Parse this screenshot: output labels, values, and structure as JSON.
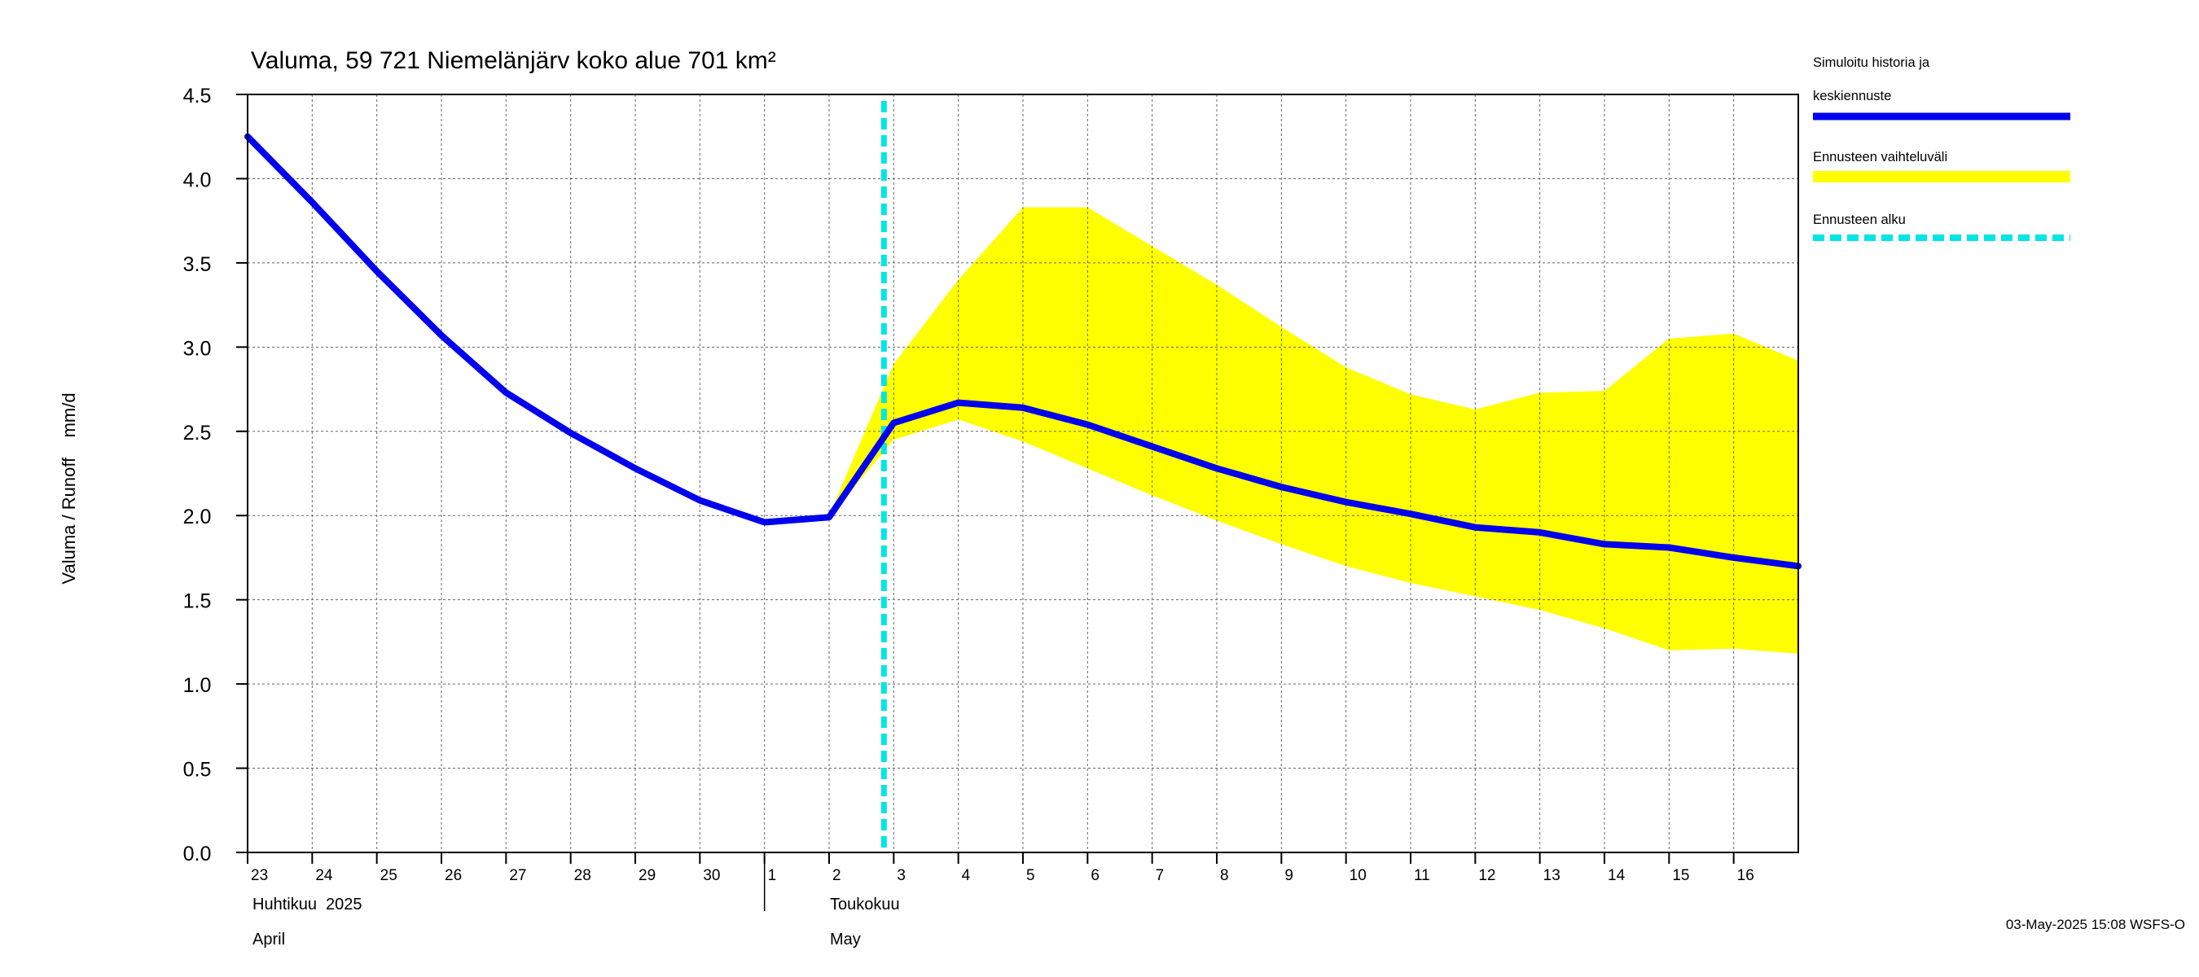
{
  "chart_data": {
    "type": "line",
    "title": "Valuma, 59 721 Niemelänjärv koko alue 701 km²",
    "ylabel": "Valuma / Runoff    mm/d",
    "ylim": [
      0,
      4.5
    ],
    "yticks": [
      "0.0",
      "0.5",
      "1.0",
      "1.5",
      "2.0",
      "2.5",
      "3.0",
      "3.5",
      "4.0",
      "4.5"
    ],
    "x_start": "2025-04-23",
    "x_end": "2025-05-17",
    "x_tick_labels": [
      "23",
      "24",
      "25",
      "26",
      "27",
      "28",
      "29",
      "30",
      "1",
      "2",
      "3",
      "4",
      "5",
      "6",
      "7",
      "8",
      "9",
      "10",
      "11",
      "12",
      "13",
      "14",
      "15",
      "16"
    ],
    "month_labels": [
      {
        "line1": "Huhtikuu  2025",
        "line2": "April"
      },
      {
        "line1": "Toukokuu",
        "line2": "May"
      }
    ],
    "grid": true,
    "legend_position": "right",
    "forecast_start": "2025-05-03",
    "series": [
      {
        "name": "Simuloitu historia ja keskiennuste",
        "kind": "line",
        "color": "#0000ee",
        "points": [
          [
            "2025-04-23",
            4.25
          ],
          [
            "2025-04-24",
            3.86
          ],
          [
            "2025-04-25",
            3.45
          ],
          [
            "2025-04-26",
            3.07
          ],
          [
            "2025-04-27",
            2.73
          ],
          [
            "2025-04-28",
            2.49
          ],
          [
            "2025-04-29",
            2.28
          ],
          [
            "2025-04-30",
            2.09
          ],
          [
            "2025-05-01",
            1.96
          ],
          [
            "2025-05-02",
            1.99
          ],
          [
            "2025-05-03",
            2.55
          ],
          [
            "2025-05-04",
            2.67
          ],
          [
            "2025-05-05",
            2.64
          ],
          [
            "2025-05-06",
            2.54
          ],
          [
            "2025-05-07",
            2.41
          ],
          [
            "2025-05-08",
            2.28
          ],
          [
            "2025-05-09",
            2.17
          ],
          [
            "2025-05-10",
            2.08
          ],
          [
            "2025-05-11",
            2.01
          ],
          [
            "2025-05-12",
            1.93
          ],
          [
            "2025-05-13",
            1.9
          ],
          [
            "2025-05-14",
            1.83
          ],
          [
            "2025-05-15",
            1.81
          ],
          [
            "2025-05-16",
            1.75
          ],
          [
            "2025-05-17",
            1.7
          ]
        ]
      },
      {
        "name": "Ennusteen vaihteluväli",
        "kind": "band",
        "color": "#ffff00",
        "upper": [
          [
            "2025-05-02",
            2.0
          ],
          [
            "2025-05-03",
            2.9
          ],
          [
            "2025-05-04",
            3.4
          ],
          [
            "2025-05-05",
            3.83
          ],
          [
            "2025-05-06",
            3.83
          ],
          [
            "2025-05-07",
            3.6
          ],
          [
            "2025-05-08",
            3.37
          ],
          [
            "2025-05-09",
            3.12
          ],
          [
            "2025-05-10",
            2.88
          ],
          [
            "2025-05-11",
            2.72
          ],
          [
            "2025-05-12",
            2.63
          ],
          [
            "2025-05-13",
            2.73
          ],
          [
            "2025-05-14",
            2.74
          ],
          [
            "2025-05-15",
            3.05
          ],
          [
            "2025-05-16",
            3.08
          ],
          [
            "2025-05-17",
            2.92
          ]
        ],
        "lower": [
          [
            "2025-05-02",
            1.99
          ],
          [
            "2025-05-03",
            2.45
          ],
          [
            "2025-05-04",
            2.57
          ],
          [
            "2025-05-05",
            2.44
          ],
          [
            "2025-05-06",
            2.28
          ],
          [
            "2025-05-07",
            2.12
          ],
          [
            "2025-05-08",
            1.97
          ],
          [
            "2025-05-09",
            1.83
          ],
          [
            "2025-05-10",
            1.7
          ],
          [
            "2025-05-11",
            1.6
          ],
          [
            "2025-05-12",
            1.52
          ],
          [
            "2025-05-13",
            1.44
          ],
          [
            "2025-05-14",
            1.33
          ],
          [
            "2025-05-15",
            1.2
          ],
          [
            "2025-05-16",
            1.21
          ],
          [
            "2025-05-17",
            1.18
          ]
        ]
      },
      {
        "name": "Ennusteen alku",
        "kind": "vline",
        "color": "#00e5e5"
      }
    ],
    "legend": [
      {
        "line1": "Simuloitu historia ja",
        "line2": "keskiennuste",
        "color": "#0000ee",
        "style": "solid"
      },
      {
        "line1": "Ennusteen vaihteluväli",
        "line2": "",
        "color": "#ffff00",
        "style": "solid"
      },
      {
        "line1": "Ennusteen alku",
        "line2": "",
        "color": "#00e5e5",
        "style": "dashed"
      }
    ]
  },
  "footer": {
    "timestamp": "03-May-2025 15:08 WSFS-O"
  }
}
